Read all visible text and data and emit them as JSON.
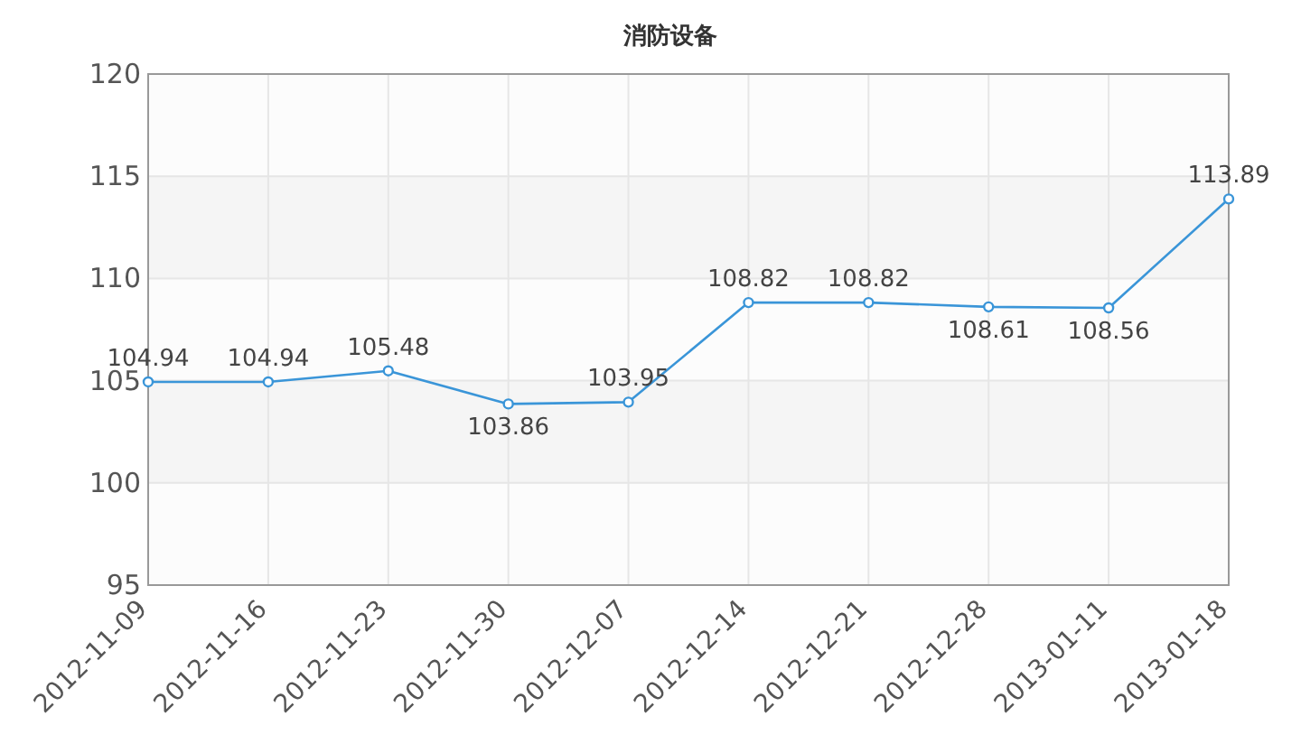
{
  "chart_data": {
    "type": "line",
    "title": "消防设备",
    "categories": [
      "2012-11-09",
      "2012-11-16",
      "2012-11-23",
      "2012-11-30",
      "2012-12-07",
      "2012-12-14",
      "2012-12-21",
      "2012-12-28",
      "2013-01-11",
      "2013-01-18"
    ],
    "series": [
      {
        "color": "#3a95d8",
        "values": [
          104.94,
          104.94,
          105.48,
          103.86,
          103.95,
          108.82,
          108.82,
          108.61,
          108.56,
          113.89
        ]
      }
    ],
    "ylim": [
      95,
      120
    ],
    "yticks": [
      95,
      100,
      105,
      110,
      115,
      120
    ],
    "grid": true,
    "marker": "circle",
    "data_labels": true
  }
}
